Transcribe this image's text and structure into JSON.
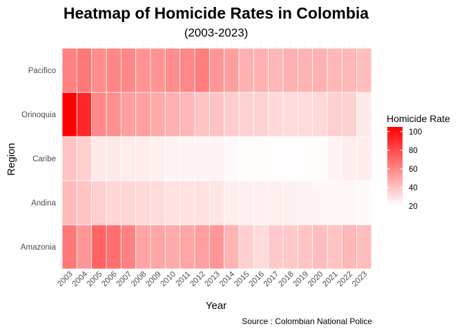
{
  "chart_data": {
    "type": "heatmap",
    "title": "Heatmap of Homicide Rates in Colombia",
    "subtitle": "(2003-2023)",
    "xlabel": "Year",
    "ylabel": "Region",
    "caption": "Source : Colombian National Police",
    "x": [
      "2003",
      "2004",
      "2005",
      "2006",
      "2007",
      "2008",
      "2009",
      "2010",
      "2011",
      "2012",
      "2013",
      "2014",
      "2015",
      "2016",
      "2017",
      "2018",
      "2019",
      "2020",
      "2021",
      "2022",
      "2023"
    ],
    "y": [
      "Amazonia",
      "Andina",
      "Caribe",
      "Orinoquia",
      "Pacifico"
    ],
    "values": [
      [
        65,
        55,
        72,
        68,
        62,
        50,
        50,
        48,
        50,
        52,
        55,
        45,
        36,
        32,
        38,
        38,
        40,
        42,
        40,
        44,
        42
      ],
      [
        43,
        40,
        36,
        34,
        34,
        33,
        32,
        30,
        30,
        30,
        29,
        26,
        25,
        25,
        25,
        25,
        24,
        23,
        23,
        23,
        22
      ],
      [
        40,
        36,
        27,
        27,
        26,
        26,
        25,
        24,
        24,
        24,
        24,
        22,
        21,
        21,
        21,
        21,
        21,
        21,
        24,
        26,
        26
      ],
      [
        105,
        92,
        60,
        57,
        52,
        52,
        48,
        46,
        44,
        40,
        40,
        37,
        35,
        35,
        33,
        32,
        32,
        33,
        36,
        36,
        27
      ],
      [
        62,
        65,
        58,
        60,
        60,
        56,
        56,
        58,
        60,
        63,
        55,
        52,
        46,
        46,
        44,
        46,
        45,
        46,
        44,
        44,
        42
      ]
    ],
    "legend": {
      "title": "Homicide Rate",
      "ticks": [
        20,
        40,
        60,
        80,
        100
      ],
      "range": [
        20,
        105
      ],
      "low_color": "#ffffff",
      "high_color": "#ff0000",
      "placement": "right"
    },
    "grid": true
  }
}
